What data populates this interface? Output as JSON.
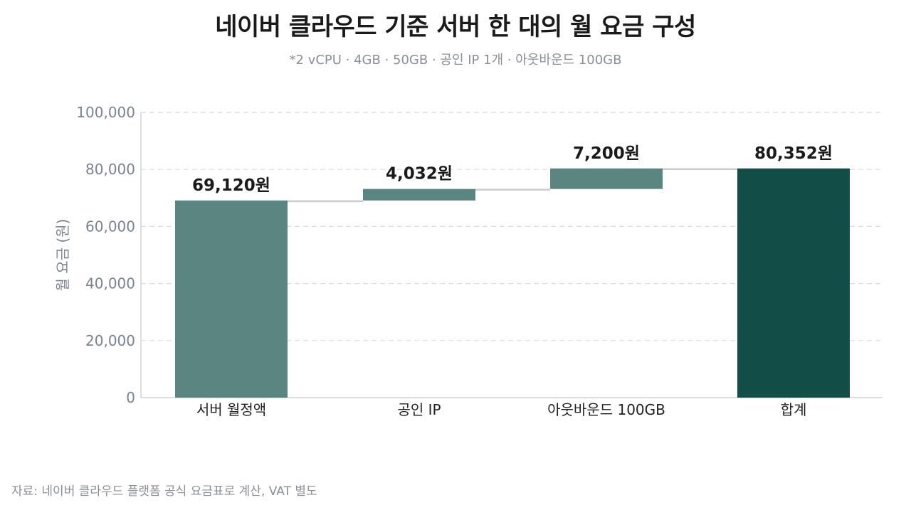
{
  "chart_data": {
    "type": "waterfall",
    "title": "네이버 클라우드 기준 서버 한 대의 월 요금 구성",
    "subtitle": "*2 vCPU · 4GB · 50GB · 공인 IP 1개 · 아웃바운드 100GB",
    "ylabel": "월 요금 (원)",
    "xlabel": "",
    "ylim": [
      0,
      100000
    ],
    "yticks": [
      0,
      20000,
      40000,
      60000,
      80000,
      100000
    ],
    "ytick_labels": [
      "0",
      "20,000",
      "40,000",
      "60,000",
      "80,000",
      "100,000"
    ],
    "grid": "horizontal dashed",
    "categories": [
      "서버 월정액",
      "공인 IP",
      "아웃바운드 100GB",
      "합계"
    ],
    "values": [
      69120,
      4032,
      7200,
      80352
    ],
    "kinds": [
      "increase",
      "increase",
      "increase",
      "total"
    ],
    "data_labels": [
      "69,120원",
      "4,032원",
      "7,200원",
      "80,352원"
    ],
    "colors": {
      "increase": "#5b8580",
      "total": "#124d48",
      "connector": "#c9cccf",
      "grid": "#d8dbe0",
      "axis": "#c5c9ce"
    }
  },
  "source": "자료: 네이버 클라우드 플랫폼 공식 요금표로 계산, VAT 별도"
}
